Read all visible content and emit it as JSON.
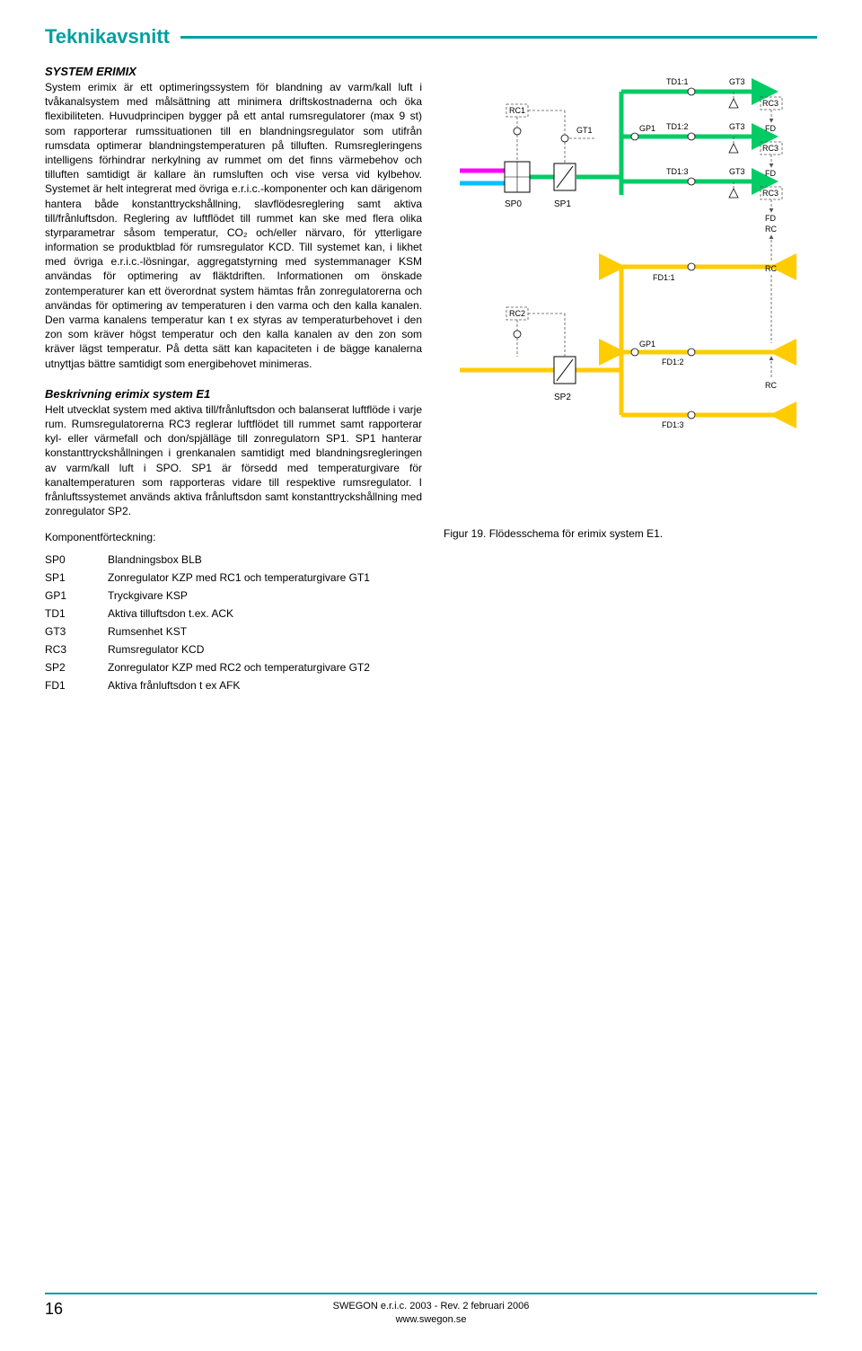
{
  "header": {
    "title": "Teknikavsnitt"
  },
  "section1": {
    "heading": "SYSTEM ERIMIX",
    "body": "System erimix är ett optimeringssystem för blandning av varm/kall luft i tvåkanalsystem med målsättning att minimera driftskostnaderna och öka flexibiliteten. Huvudprincipen bygger på ett antal rumsregulatorer (max 9 st) som rapporterar rumssituationen till en blandningsregulator som utifrån rumsdata optimerar blandningstemperaturen på tilluften. Rumsregleringens intelligens förhindrar nerkylning av rummet om det finns värmebehov och tilluften samtidigt är kallare än rumsluften och vise versa vid kylbehov. Systemet är helt integrerat med övriga e.r.i.c.-komponenter och kan därigenom hantera både konstanttryckshållning, slavflödesreglering samt aktiva till/frånluftsdon. Reglering av luftflödet till rummet kan ske med flera olika styrparametrar såsom temperatur, CO₂ och/eller närvaro, för ytterligare information se produktblad för rumsregulator KCD. Till systemet kan, i likhet med övriga e.r.i.c.-lösningar, aggregatstyrning med systemmanager KSM användas för optimering av fläktdriften.\nInformationen om önskade zontemperaturer kan ett överordnat system hämtas från zonregulatorerna och användas för optimering av temperaturen i den varma och den kalla kanalen. Den varma kanalens temperatur kan t ex styras av temperaturbehovet i den zon som kräver högst temperatur och den kalla kanalen av den zon som kräver lägst temperatur. På detta sätt kan kapaciteten i de bägge kanalerna utnyttjas bättre samtidigt som energibehovet minimeras."
  },
  "section2": {
    "heading": "Beskrivning erimix system E1",
    "body": "Helt utvecklat system med aktiva till/frånluftsdon och balanserat luftflöde i varje rum. Rumsregulatorerna RC3 reglerar luftflödet till rummet samt rapporterar kyl- eller värmefall och don/spjälläge till zonregulatorn SP1. SP1 hanterar konstanttryckshållningen i grenkanalen samtidigt med blandningsregleringen av varm/kall luft i SPO. SP1 är försedd med temperaturgivare för kanaltemperaturen som rapporteras vidare till respektive rumsregulator. I frånluftssystemet används aktiva frånluftsdon samt konstanttryckshållning med zonregulator SP2."
  },
  "components": {
    "heading": "Komponentförteckning:",
    "rows": [
      {
        "id": "SP0",
        "desc": "Blandningsbox BLB"
      },
      {
        "id": "SP1",
        "desc": "Zonregulator KZP med RC1 och temperaturgivare GT1"
      },
      {
        "id": "GP1",
        "desc": "Tryckgivare KSP"
      },
      {
        "id": "TD1",
        "desc": "Aktiva tilluftsdon t.ex. ACK"
      },
      {
        "id": "GT3",
        "desc": "Rumsenhet KST"
      },
      {
        "id": "RC3",
        "desc": "Rumsregulator KCD"
      },
      {
        "id": "SP2",
        "desc": "Zonregulator KZP med RC2 och temperaturgivare GT2"
      },
      {
        "id": "FD1",
        "desc": "Aktiva frånluftsdon t ex AFK"
      }
    ]
  },
  "figure": {
    "caption": "Figur 19. Flödesschema för erimix system E1."
  },
  "diagram": {
    "colors": {
      "warm": "#ff00ff",
      "cold": "#00c0ff",
      "supply_mix": "#00cc66",
      "exhaust": "#ffcc00",
      "dash": "#555555",
      "box_stroke": "#000000",
      "bg": "#ffffff"
    },
    "labels": {
      "SP0": "SP0",
      "SP1": "SP1",
      "SP2": "SP2",
      "RC1": "RC1",
      "RC2": "RC2",
      "RC3": "RC3",
      "GT1": "GT1",
      "GT3": "GT3",
      "GP1": "GP1",
      "TD1_1": "TD1:1",
      "TD1_2": "TD1:2",
      "TD1_3": "TD1:3",
      "FD1_1": "FD1:1",
      "FD1_2": "FD1:2",
      "FD1_3": "FD1:3",
      "FD": "FD",
      "RC": "RC"
    }
  },
  "footer": {
    "page": "16",
    "line1": "SWEGON e.r.i.c. 2003 - Rev. 2 februari 2006",
    "line2": "www.swegon.se"
  }
}
